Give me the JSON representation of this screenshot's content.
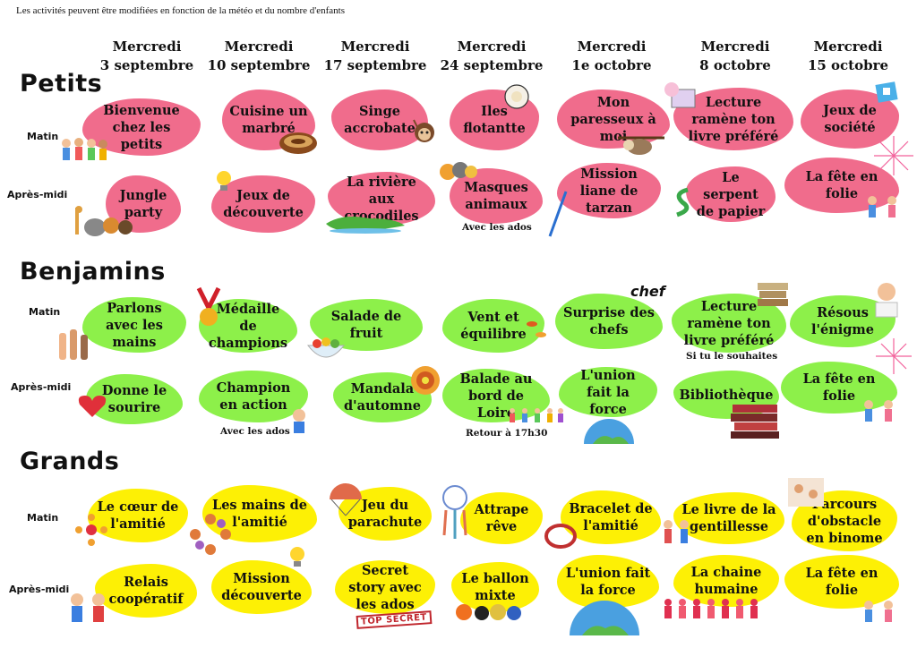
{
  "note": "Les activités peuvent être modifiées en fonction de la météo et du nombre d'enfants",
  "days": [
    {
      "line1": "Mercredi",
      "line2": "3 septembre"
    },
    {
      "line1": "Mercredi",
      "line2": "10 septembre"
    },
    {
      "line1": "Mercredi",
      "line2": "17 septembre"
    },
    {
      "line1": "Mercredi",
      "line2": "24 septembre"
    },
    {
      "line1": "Mercredi",
      "line2": "1e octobre"
    },
    {
      "line1": "Mercredi",
      "line2": "8 octobre"
    },
    {
      "line1": "Mercredi",
      "line2": "15 octobre"
    }
  ],
  "groups": {
    "petits": {
      "name": "Petits",
      "matin_label": "Matin",
      "apres_label": "Après-midi",
      "matin": [
        "Bienvenue chez les petits",
        "Cuisine un marbré",
        "Singe accrobate",
        "Iles flotantte",
        "Mon paresseux à moi",
        "Lecture ramène ton livre préféré",
        "Jeux de société"
      ],
      "apres": [
        "Jungle party",
        "Jeux de découverte",
        "La rivière aux crocodiles",
        "Masques animaux",
        "Mission liane de tarzan",
        "Le serpent de papier",
        "La fête en folie"
      ],
      "apres_note": "Avec les ados"
    },
    "benjamins": {
      "name": "Benjamins",
      "matin_label": "Matin",
      "apres_label": "Après-midi",
      "matin": [
        "Parlons avec les mains",
        "Médaille de champions",
        "Salade de fruit",
        "Vent et équilibre",
        "Surprise des chefs",
        "Lecture ramène ton livre préféré",
        "Résous l'énigme"
      ],
      "matin_note": "Si tu le souhaites",
      "apres": [
        "Donne le sourire",
        "Champion en action",
        "Mandala d'automne",
        "Balade au bord de Loire",
        "L'union fait la force",
        "Bibliothèque",
        "La fête en folie"
      ],
      "apres_note1": "Avec les ados",
      "apres_note2": "Retour à 17h30"
    },
    "grands": {
      "name": "Grands",
      "matin_label": "Matin",
      "apres_label": "Après-midi",
      "matin": [
        "Le cœur de l'amitié",
        "Les mains de l'amitié",
        "Jeu du parachute",
        "Attrape rêve",
        "Bracelet de l'amitié",
        "Le livre de la gentillesse",
        "Parcours d'obstacle en binome"
      ],
      "apres": [
        "Relais coopératif",
        "Mission découverte",
        "Secret story avec les ados",
        "Le ballon mixte",
        "L'union fait la force",
        "La chaine humaine",
        "La fête en folie"
      ]
    }
  },
  "deco": {
    "chef": "chef",
    "top_secret": "TOP SECRET"
  },
  "colors": {
    "petits": "#f06c8c",
    "benjamins": "#8df04a",
    "grands": "#fdf005"
  }
}
